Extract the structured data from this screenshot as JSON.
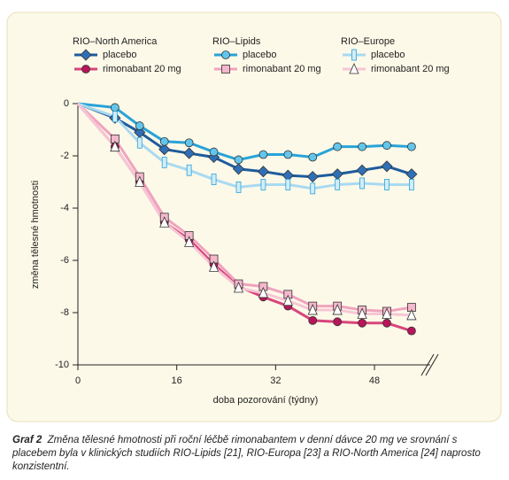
{
  "chart_data": {
    "type": "line",
    "x_label": "doba pozorování (týdny)",
    "y_label": "změna tělesné hmotnosti",
    "xlim": [
      0,
      57
    ],
    "ylim": [
      -10,
      0
    ],
    "xticks": [
      0,
      16,
      32,
      48
    ],
    "yticks": [
      0,
      -2,
      -4,
      -6,
      -8,
      -10
    ],
    "legend_groups": [
      "RIO–North America",
      "RIO–Lipids",
      "RIO–Europe"
    ],
    "x": [
      0,
      6,
      10,
      14,
      18,
      22,
      26,
      30,
      34,
      38,
      42,
      46,
      50,
      54
    ],
    "series": [
      {
        "name": "placebo",
        "group": 0,
        "marker": "diamond",
        "color": "#1e5c9e",
        "fill": "#2f6fb7",
        "values": [
          0,
          -0.55,
          -1.1,
          -1.75,
          -1.9,
          -2.05,
          -2.5,
          -2.6,
          -2.75,
          -2.8,
          -2.7,
          -2.55,
          -2.4,
          -2.7
        ]
      },
      {
        "name": "rimonabant 20 mg",
        "group": 0,
        "marker": "circle",
        "color": "#d8457c",
        "fill": "#b8155a",
        "values": [
          0,
          -1.65,
          -3.0,
          -4.55,
          -5.2,
          -6.15,
          -7.0,
          -7.4,
          -7.75,
          -8.3,
          -8.35,
          -8.4,
          -8.4,
          -8.7
        ]
      },
      {
        "name": "placebo",
        "group": 1,
        "marker": "circle",
        "color": "#28a3d8",
        "fill": "#62c6ec",
        "values": [
          0,
          -0.15,
          -0.85,
          -1.45,
          -1.5,
          -1.85,
          -2.15,
          -1.95,
          -1.95,
          -2.05,
          -1.65,
          -1.65,
          -1.6,
          -1.65
        ]
      },
      {
        "name": "rimonabant 20 mg",
        "group": 1,
        "marker": "square",
        "color": "#f0a3be",
        "fill": "#f4b7cb",
        "values": [
          0,
          -1.35,
          -2.8,
          -4.35,
          -5.05,
          -5.95,
          -6.9,
          -7.0,
          -7.3,
          -7.75,
          -7.75,
          -7.9,
          -7.95,
          -7.8
        ]
      },
      {
        "name": "placebo",
        "group": 2,
        "marker": "rect",
        "color": "#a9d9f1",
        "fill": "#d3ecf9",
        "values": [
          0,
          -0.5,
          -1.5,
          -2.25,
          -2.55,
          -2.9,
          -3.2,
          -3.1,
          -3.1,
          -3.25,
          -3.1,
          -3.05,
          -3.1,
          -3.1
        ]
      },
      {
        "name": "rimonabant 20 mg",
        "group": 2,
        "marker": "triangle",
        "color": "#f6c6d6",
        "fill": "#ffffff",
        "values": [
          0,
          -1.65,
          -3.0,
          -4.55,
          -5.3,
          -6.25,
          -7.05,
          -7.25,
          -7.55,
          -7.9,
          -7.9,
          -8.05,
          -8.05,
          -8.1
        ]
      }
    ]
  },
  "caption": {
    "label": "Graf 2",
    "text": "Změna tělesné hmotnosti při roční léčbě rimonabantem v denní dávce 20 mg ve srovnání s placebem byla v klinických studiích RIO-Lipids [21], RIO-Europa [23] a RIO-North America [24] naprosto konzistentní."
  }
}
